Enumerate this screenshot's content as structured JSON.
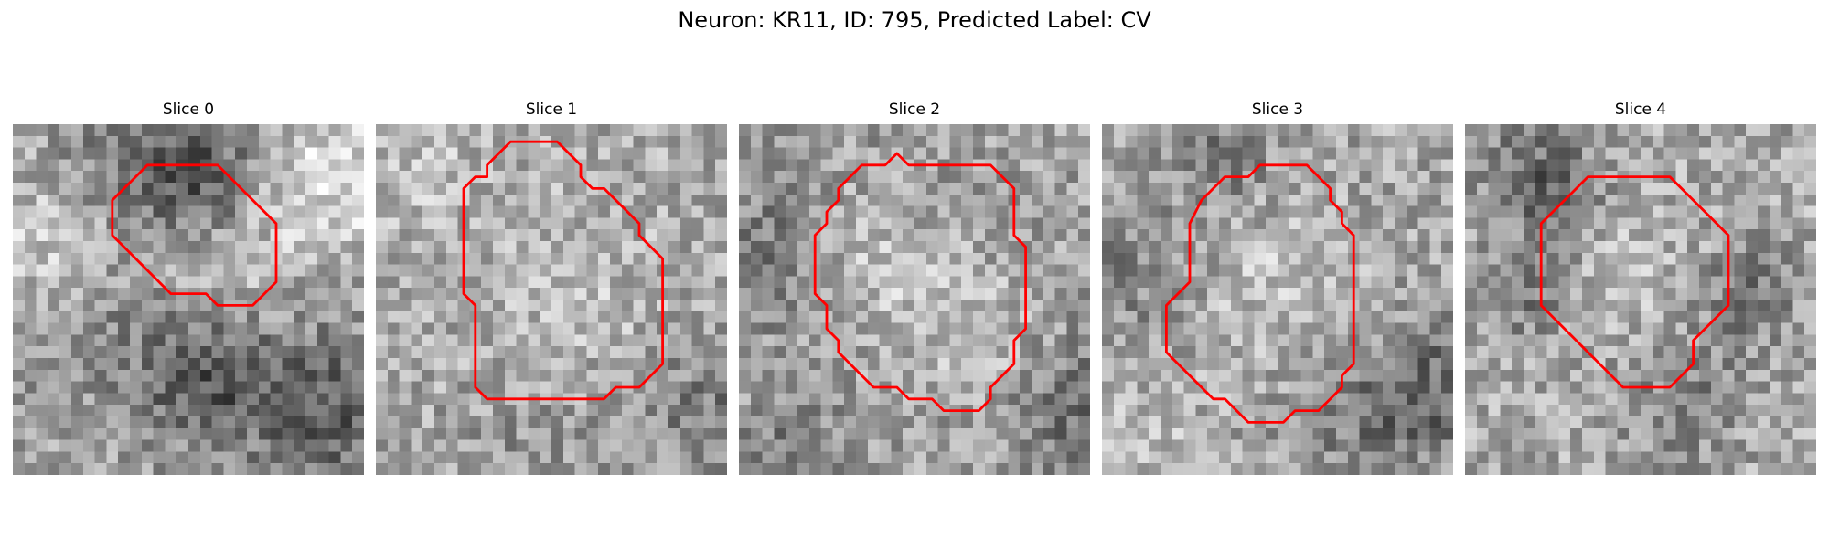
{
  "figure": {
    "title": "Neuron: KR11, ID: 795, Predicted Label: CV",
    "contour_color": "#ff0000"
  },
  "panels": [
    {
      "title": "Slice 0",
      "noise_seed": 11,
      "base_gray": 165,
      "contour": [
        [
          13.5,
          3.5
        ],
        [
          17.5,
          3.5
        ],
        [
          22.5,
          8.5
        ],
        [
          22.5,
          13.5
        ],
        [
          20.5,
          15.5
        ],
        [
          17.5,
          15.5
        ],
        [
          16.5,
          14.5
        ],
        [
          13.5,
          14.5
        ],
        [
          8.5,
          9.5
        ],
        [
          8.5,
          6.5
        ],
        [
          11.5,
          3.5
        ]
      ],
      "dark_regions": [
        [
          15,
          4,
          4,
          90
        ],
        [
          16,
          21,
          4,
          80
        ],
        [
          27,
          24,
          5,
          70
        ],
        [
          5,
          17,
          5,
          35
        ],
        [
          7,
          3,
          4,
          30
        ]
      ],
      "bright_regions": [
        [
          27,
          4,
          5,
          55
        ],
        [
          2,
          10,
          5,
          45
        ],
        [
          17,
          11,
          4,
          30
        ]
      ]
    },
    {
      "title": "Slice 1",
      "noise_seed": 23,
      "base_gray": 170,
      "contour": [
        [
          12.5,
          1.5
        ],
        [
          15.5,
          1.5
        ],
        [
          17.5,
          3.5
        ],
        [
          17.5,
          4.5
        ],
        [
          18.5,
          5.5
        ],
        [
          19.5,
          5.5
        ],
        [
          22.5,
          8.5
        ],
        [
          22.5,
          9.5
        ],
        [
          24.5,
          11.5
        ],
        [
          24.5,
          20.5
        ],
        [
          22.5,
          22.5
        ],
        [
          20.5,
          22.5
        ],
        [
          19.5,
          23.5
        ],
        [
          9.5,
          23.5
        ],
        [
          8.5,
          22.5
        ],
        [
          8.5,
          15.5
        ],
        [
          7.5,
          14.5
        ],
        [
          7.5,
          5.5
        ],
        [
          8.5,
          4.5
        ],
        [
          9.5,
          4.5
        ],
        [
          9.5,
          3.5
        ],
        [
          11.5,
          1.5
        ]
      ],
      "dark_regions": [
        [
          28,
          24,
          4,
          45
        ],
        [
          13,
          28,
          5,
          20
        ]
      ],
      "bright_regions": [
        [
          16,
          14,
          5,
          20
        ],
        [
          3,
          3,
          4,
          20
        ]
      ]
    },
    {
      "title": "Slice 2",
      "noise_seed": 37,
      "base_gray": 160,
      "contour": [
        [
          14.5,
          3.5
        ],
        [
          21.5,
          3.5
        ],
        [
          23.5,
          5.5
        ],
        [
          23.5,
          9.5
        ],
        [
          24.5,
          10.5
        ],
        [
          24.5,
          17.5
        ],
        [
          23.5,
          18.5
        ],
        [
          23.5,
          20.5
        ],
        [
          21.5,
          22.5
        ],
        [
          21.5,
          23.5
        ],
        [
          20.5,
          24.5
        ],
        [
          17.5,
          24.5
        ],
        [
          16.5,
          23.5
        ],
        [
          14.5,
          23.5
        ],
        [
          13.5,
          22.5
        ],
        [
          11.5,
          22.5
        ],
        [
          8.5,
          19.5
        ],
        [
          8.5,
          18.5
        ],
        [
          7.5,
          17.5
        ],
        [
          7.5,
          15.5
        ],
        [
          6.5,
          14.5
        ],
        [
          6.5,
          9.5
        ],
        [
          7.5,
          8.5
        ],
        [
          7.5,
          7.5
        ],
        [
          8.5,
          6.5
        ],
        [
          8.5,
          5.5
        ],
        [
          10.5,
          3.5
        ],
        [
          12.5,
          3.5
        ],
        [
          13.5,
          2.5
        ]
      ],
      "dark_regions": [
        [
          2,
          11,
          4,
          45
        ],
        [
          29,
          24,
          4,
          55
        ],
        [
          4,
          27,
          3,
          30
        ]
      ],
      "bright_regions": [
        [
          11,
          12,
          4,
          35
        ],
        [
          20,
          17,
          4,
          30
        ]
      ]
    },
    {
      "title": "Slice 3",
      "noise_seed": 51,
      "base_gray": 165,
      "contour": [
        [
          12.5,
          4.5
        ],
        [
          13.5,
          3.5
        ],
        [
          17.5,
          3.5
        ],
        [
          19.5,
          5.5
        ],
        [
          19.5,
          6.5
        ],
        [
          20.5,
          7.5
        ],
        [
          20.5,
          8.5
        ],
        [
          21.5,
          9.5
        ],
        [
          21.5,
          15.5
        ],
        [
          21.5,
          20.5
        ],
        [
          20.5,
          21.5
        ],
        [
          20.5,
          22.5
        ],
        [
          18.5,
          24.5
        ],
        [
          16.5,
          24.5
        ],
        [
          15.5,
          25.5
        ],
        [
          12.5,
          25.5
        ],
        [
          10.5,
          23.5
        ],
        [
          9.5,
          23.5
        ],
        [
          5.5,
          19.5
        ],
        [
          5.5,
          15.5
        ],
        [
          7.5,
          13.5
        ],
        [
          7.5,
          8.5
        ],
        [
          8.5,
          6.5
        ],
        [
          10.5,
          4.5
        ],
        [
          11.5,
          4.5
        ]
      ],
      "dark_regions": [
        [
          29,
          22,
          4,
          60
        ],
        [
          10,
          2,
          3,
          40
        ],
        [
          22,
          25,
          4,
          40
        ],
        [
          2,
          12,
          4,
          30
        ]
      ],
      "bright_regions": [
        [
          14,
          13,
          5,
          25
        ],
        [
          3,
          27,
          4,
          20
        ]
      ]
    },
    {
      "title": "Slice 4",
      "noise_seed": 67,
      "base_gray": 170,
      "contour": [
        [
          8.5,
          6.5
        ],
        [
          10.5,
          4.5
        ],
        [
          17.5,
          4.5
        ],
        [
          22.5,
          9.5
        ],
        [
          22.5,
          15.5
        ],
        [
          19.5,
          18.5
        ],
        [
          19.5,
          20.5
        ],
        [
          17.5,
          22.5
        ],
        [
          13.5,
          22.5
        ],
        [
          6.5,
          15.5
        ],
        [
          6.5,
          8.5
        ],
        [
          8.5,
          6.5
        ]
      ],
      "dark_regions": [
        [
          7,
          5,
          3,
          70
        ],
        [
          5,
          14,
          3,
          45
        ],
        [
          24,
          14,
          3,
          50
        ],
        [
          18,
          23,
          4,
          40
        ],
        [
          3,
          3,
          3,
          25
        ]
      ],
      "bright_regions": [
        [
          13,
          13,
          4,
          25
        ]
      ]
    }
  ]
}
